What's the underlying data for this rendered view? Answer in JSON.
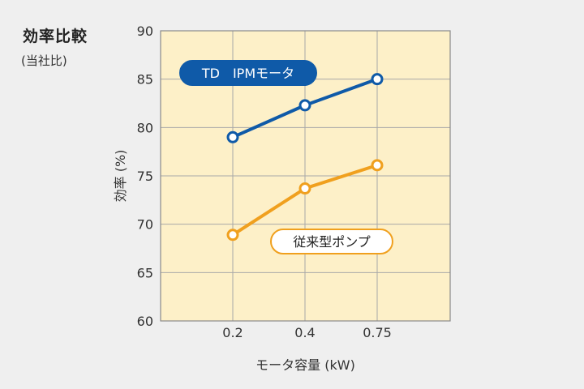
{
  "header": {
    "title": "効率比較",
    "subtitle": "(当社比)"
  },
  "colors": {
    "background": "#efefef",
    "plot_background": "#fdf0c8",
    "grid": "#a8a8a8",
    "ipm_series": "#0f5aa8",
    "conventional_series": "#f0a01e"
  },
  "chart_data": {
    "type": "line",
    "x": [
      0.2,
      0.4,
      0.75
    ],
    "x_tick_labels": [
      "0.2",
      "0.4",
      "0.75"
    ],
    "xlabel": "モータ容量 (kW)",
    "ylabel": "効率 (%)",
    "ylim": [
      60,
      90
    ],
    "y_ticks": [
      60,
      65,
      70,
      75,
      80,
      85,
      90
    ],
    "grid": true,
    "series": [
      {
        "name": "TD　IPMモータ",
        "values": [
          79,
          82.3,
          85
        ],
        "color": "#0f5aa8",
        "label_style": "filled"
      },
      {
        "name": "従来型ポンプ",
        "values": [
          68.9,
          73.7,
          76.1
        ],
        "color": "#f0a01e",
        "label_style": "outlined"
      }
    ]
  }
}
